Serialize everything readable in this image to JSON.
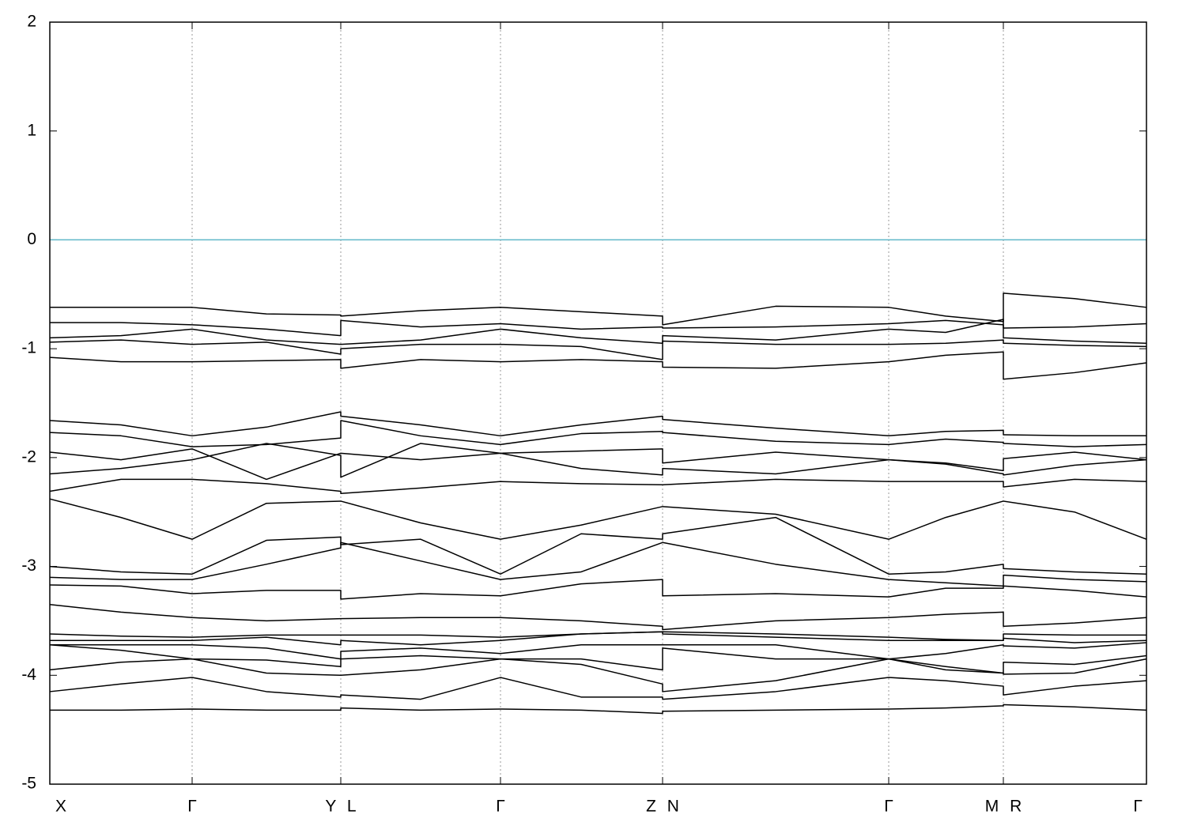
{
  "chart_data": {
    "type": "line",
    "color": "#000000",
    "fermi_level": {
      "value": 0,
      "color": "#5fb7c9"
    },
    "grid": true,
    "xlim": [
      0,
      13.87
    ],
    "ylim": [
      -5,
      2
    ],
    "yticks": [
      -5,
      -4,
      -3,
      -2,
      -1,
      0,
      1,
      2
    ],
    "xticks": [
      {
        "value": 0,
        "label": "X"
      },
      {
        "value": 1.8,
        "label": "Γ"
      },
      {
        "value": 3.68,
        "label": "Y L"
      },
      {
        "value": 5.7,
        "label": "Γ"
      },
      {
        "value": 7.75,
        "label": "Z N"
      },
      {
        "value": 10.61,
        "label": "Γ"
      },
      {
        "value": 12.06,
        "label": "M R"
      },
      {
        "value": 13.87,
        "label": "Γ"
      }
    ],
    "x": [
      0,
      0.9,
      1.8,
      2.74,
      3.68,
      3.68,
      4.69,
      5.7,
      6.72,
      7.75,
      7.75,
      9.18,
      10.61,
      11.33,
      12.06,
      12.06,
      12.96,
      13.87
    ],
    "series": [
      {
        "values": [
          -0.62,
          -0.62,
          -0.62,
          -0.68,
          -0.69,
          -0.7,
          -0.65,
          -0.62,
          -0.66,
          -0.7,
          -0.78,
          -0.61,
          -0.62,
          -0.7,
          -0.75,
          -0.49,
          -0.54,
          -0.62
        ]
      },
      {
        "values": [
          -0.76,
          -0.76,
          -0.78,
          -0.82,
          -0.88,
          -0.74,
          -0.8,
          -0.77,
          -0.82,
          -0.8,
          -0.81,
          -0.8,
          -0.77,
          -0.74,
          -0.78,
          -0.81,
          -0.8,
          -0.77
        ]
      },
      {
        "values": [
          -0.9,
          -0.88,
          -0.82,
          -0.92,
          -0.96,
          -0.96,
          -0.92,
          -0.82,
          -0.9,
          -0.95,
          -0.88,
          -0.92,
          -0.82,
          -0.85,
          -0.73,
          -0.9,
          -0.93,
          -0.95
        ]
      },
      {
        "values": [
          -0.94,
          -0.92,
          -0.96,
          -0.94,
          -1.05,
          -1.0,
          -0.96,
          -0.96,
          -0.98,
          -1.1,
          -0.93,
          -0.96,
          -0.96,
          -0.95,
          -0.92,
          -0.95,
          -0.97,
          -0.98
        ]
      },
      {
        "values": [
          -1.08,
          -1.12,
          -1.12,
          -1.11,
          -1.1,
          -1.18,
          -1.1,
          -1.12,
          -1.1,
          -1.12,
          -1.17,
          -1.18,
          -1.12,
          -1.06,
          -1.03,
          -1.28,
          -1.22,
          -1.13
        ]
      },
      {
        "values": [
          -1.66,
          -1.7,
          -1.8,
          -1.72,
          -1.58,
          -1.62,
          -1.7,
          -1.8,
          -1.7,
          -1.62,
          -1.65,
          -1.73,
          -1.8,
          -1.76,
          -1.75,
          -1.79,
          -1.8,
          -1.8
        ]
      },
      {
        "values": [
          -1.77,
          -1.8,
          -1.9,
          -1.88,
          -1.82,
          -1.66,
          -1.8,
          -1.88,
          -1.78,
          -1.76,
          -1.77,
          -1.85,
          -1.88,
          -1.83,
          -1.86,
          -1.87,
          -1.9,
          -1.88
        ]
      },
      {
        "values": [
          -1.95,
          -2.02,
          -1.92,
          -2.2,
          -1.96,
          -1.96,
          -2.02,
          -1.96,
          -1.94,
          -1.92,
          -2.05,
          -1.95,
          -2.02,
          -2.05,
          -2.12,
          -2.01,
          -1.95,
          -2.02
        ]
      },
      {
        "values": [
          -2.15,
          -2.1,
          -2.02,
          -1.87,
          -1.98,
          -2.18,
          -1.87,
          -1.96,
          -2.1,
          -2.16,
          -2.1,
          -2.15,
          -2.02,
          -2.06,
          -2.15,
          -2.16,
          -2.07,
          -2.02
        ]
      },
      {
        "values": [
          -2.31,
          -2.2,
          -2.2,
          -2.24,
          -2.31,
          -2.33,
          -2.28,
          -2.22,
          -2.24,
          -2.25,
          -2.25,
          -2.2,
          -2.22,
          -2.22,
          -2.22,
          -2.27,
          -2.2,
          -2.22
        ]
      },
      {
        "values": [
          -2.38,
          -2.55,
          -2.75,
          -2.42,
          -2.4,
          -2.4,
          -2.6,
          -2.75,
          -2.62,
          -2.45,
          -2.45,
          -2.52,
          -2.75,
          -2.55,
          -2.4,
          -2.4,
          -2.5,
          -2.75
        ]
      },
      {
        "values": [
          -3.0,
          -3.05,
          -3.07,
          -2.76,
          -2.73,
          -2.8,
          -2.75,
          -3.07,
          -2.7,
          -2.75,
          -2.7,
          -2.55,
          -3.07,
          -3.05,
          -2.98,
          -3.02,
          -3.05,
          -3.07
        ]
      },
      {
        "values": [
          -3.1,
          -3.12,
          -3.12,
          -2.98,
          -2.83,
          -2.78,
          -2.95,
          -3.12,
          -3.05,
          -2.78,
          -2.78,
          -2.98,
          -3.12,
          -3.15,
          -3.18,
          -3.08,
          -3.12,
          -3.14
        ]
      },
      {
        "values": [
          -3.17,
          -3.18,
          -3.25,
          -3.22,
          -3.22,
          -3.3,
          -3.25,
          -3.27,
          -3.16,
          -3.12,
          -3.27,
          -3.25,
          -3.28,
          -3.2,
          -3.2,
          -3.18,
          -3.22,
          -3.28
        ]
      },
      {
        "values": [
          -3.35,
          -3.42,
          -3.47,
          -3.5,
          -3.48,
          -3.48,
          -3.47,
          -3.47,
          -3.5,
          -3.55,
          -3.58,
          -3.5,
          -3.47,
          -3.44,
          -3.42,
          -3.55,
          -3.52,
          -3.47
        ]
      },
      {
        "values": [
          -3.62,
          -3.64,
          -3.65,
          -3.63,
          -3.63,
          -3.63,
          -3.63,
          -3.65,
          -3.62,
          -3.6,
          -3.6,
          -3.62,
          -3.65,
          -3.67,
          -3.68,
          -3.62,
          -3.63,
          -3.63
        ]
      },
      {
        "values": [
          -3.68,
          -3.68,
          -3.68,
          -3.65,
          -3.72,
          -3.68,
          -3.72,
          -3.68,
          -3.62,
          -3.6,
          -3.62,
          -3.65,
          -3.68,
          -3.68,
          -3.68,
          -3.66,
          -3.7,
          -3.68
        ]
      },
      {
        "values": [
          -3.72,
          -3.72,
          -3.72,
          -3.75,
          -3.85,
          -3.78,
          -3.75,
          -3.8,
          -3.72,
          -3.72,
          -3.72,
          -3.72,
          -3.85,
          -3.8,
          -3.72,
          -3.73,
          -3.75,
          -3.7
        ]
      },
      {
        "values": [
          -3.72,
          -3.77,
          -3.85,
          -3.86,
          -3.92,
          -3.85,
          -3.82,
          -3.85,
          -3.85,
          -3.95,
          -3.75,
          -3.85,
          -3.85,
          -3.92,
          -3.98,
          -3.88,
          -3.9,
          -3.82
        ]
      },
      {
        "values": [
          -3.95,
          -3.88,
          -3.85,
          -3.98,
          -4.0,
          -4.0,
          -3.95,
          -3.85,
          -3.9,
          -4.08,
          -4.15,
          -4.05,
          -3.85,
          -3.95,
          -3.98,
          -3.99,
          -3.98,
          -3.85
        ]
      },
      {
        "values": [
          -4.15,
          -4.08,
          -4.02,
          -4.15,
          -4.2,
          -4.18,
          -4.22,
          -4.02,
          -4.2,
          -4.2,
          -4.22,
          -4.15,
          -4.02,
          -4.05,
          -4.1,
          -4.18,
          -4.1,
          -4.05
        ]
      },
      {
        "values": [
          -4.32,
          -4.32,
          -4.31,
          -4.32,
          -4.32,
          -4.3,
          -4.32,
          -4.31,
          -4.32,
          -4.35,
          -4.33,
          -4.32,
          -4.31,
          -4.3,
          -4.28,
          -4.27,
          -4.29,
          -4.32
        ]
      }
    ]
  }
}
